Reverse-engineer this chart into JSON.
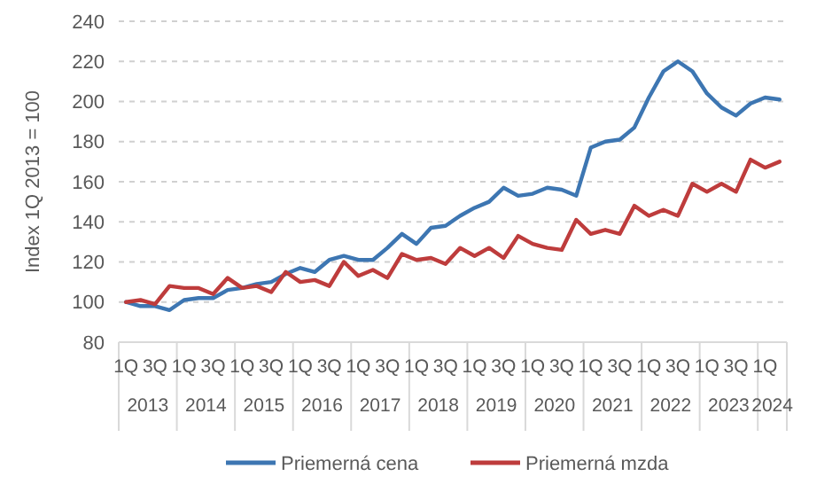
{
  "chart_data": {
    "type": "line",
    "ylabel": "Index 1Q 2013 = 100",
    "categories": [
      "1Q",
      null,
      "3Q",
      null,
      "1Q",
      null,
      "3Q",
      null,
      "1Q",
      null,
      "3Q",
      null,
      "1Q",
      null,
      "3Q",
      null,
      "1Q",
      null,
      "3Q",
      null,
      "1Q",
      null,
      "3Q",
      null,
      "1Q",
      null,
      "3Q",
      null,
      "1Q",
      null,
      "3Q",
      null,
      "1Q",
      null,
      "3Q",
      null,
      "1Q",
      null,
      "3Q",
      null,
      "1Q",
      null,
      "3Q",
      null,
      "1Q",
      null
    ],
    "annotations": [
      "2013",
      "2014",
      "2015",
      "2016",
      "2017",
      "2018",
      "2019",
      "2020",
      "2021",
      "2022",
      "2023",
      "2024"
    ],
    "series": [
      {
        "name": "Priemerná cena",
        "color": "#3d76b2",
        "values": [
          100,
          98,
          98,
          96,
          101,
          102,
          102,
          106,
          107,
          109,
          110,
          114,
          117,
          115,
          121,
          123,
          121,
          121,
          127,
          134,
          129,
          137,
          138,
          143,
          147,
          150,
          157,
          153,
          154,
          157,
          156,
          153,
          177,
          180,
          181,
          187,
          202,
          215,
          220,
          215,
          204,
          197,
          193,
          199,
          202,
          201
        ]
      },
      {
        "name": "Priemerná mzda",
        "color": "#be3c3c",
        "values": [
          100,
          101,
          99,
          108,
          107,
          107,
          104,
          112,
          107,
          108,
          105,
          115,
          110,
          111,
          108,
          120,
          113,
          116,
          112,
          124,
          121,
          122,
          119,
          127,
          123,
          127,
          122,
          133,
          129,
          127,
          126,
          141,
          134,
          136,
          134,
          148,
          143,
          146,
          143,
          159,
          155,
          159,
          155,
          171,
          167,
          170
        ]
      }
    ],
    "ylim": [
      80,
      240
    ],
    "yticks": [
      80,
      100,
      120,
      140,
      160,
      180,
      200,
      220,
      240
    ],
    "grid": "y",
    "legend": "bottom",
    "line_style": "solid",
    "marker": "none"
  }
}
